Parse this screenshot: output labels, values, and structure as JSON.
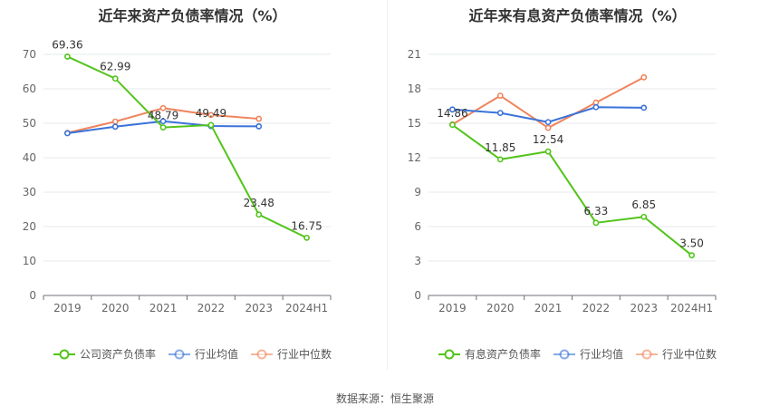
{
  "chart_data": [
    {
      "type": "line",
      "title": "近年来资产负债率情况（%）",
      "categories": [
        "2019",
        "2020",
        "2021",
        "2022",
        "2023",
        "2024H1"
      ],
      "ylim": [
        0,
        70
      ],
      "yticks": [
        "0",
        "10",
        "20",
        "30",
        "40",
        "50",
        "60",
        "70"
      ],
      "grid": true,
      "legend_position": "bottom",
      "series": [
        {
          "name": "公司资产负债率",
          "color": "#52c41a",
          "values": [
            69.36,
            62.99,
            48.79,
            49.49,
            23.48,
            16.75
          ],
          "labels": [
            "69.36",
            "62.99",
            "48.79",
            "49.49",
            "23.48",
            "16.75"
          ]
        },
        {
          "name": "行业均值",
          "color": "#3a73d9",
          "values": [
            47.1,
            49.0,
            50.6,
            49.2,
            49.1,
            null
          ]
        },
        {
          "name": "行业中位数",
          "color": "#f0845c",
          "values": [
            47.2,
            50.5,
            54.4,
            52.4,
            51.3,
            null
          ]
        }
      ]
    },
    {
      "type": "line",
      "title": "近年来有息资产负债率情况（%）",
      "categories": [
        "2019",
        "2020",
        "2021",
        "2022",
        "2023",
        "2024H1"
      ],
      "ylim": [
        0,
        21
      ],
      "yticks": [
        "0",
        "3",
        "6",
        "9",
        "12",
        "15",
        "18",
        "21"
      ],
      "grid": true,
      "legend_position": "bottom",
      "series": [
        {
          "name": "有息资产负债率",
          "color": "#52c41a",
          "values": [
            14.86,
            11.85,
            12.54,
            6.33,
            6.85,
            3.5
          ],
          "labels": [
            "14.86",
            "11.85",
            "12.54",
            "6.33",
            "6.85",
            "3.50"
          ]
        },
        {
          "name": "行业均值",
          "color": "#3a73d9",
          "values": [
            16.2,
            15.9,
            15.1,
            16.4,
            16.35,
            null
          ]
        },
        {
          "name": "行业中位数",
          "color": "#f0845c",
          "values": [
            14.9,
            17.4,
            14.6,
            16.8,
            19.0,
            null
          ]
        }
      ]
    }
  ],
  "source": "数据来源：恒生聚源"
}
